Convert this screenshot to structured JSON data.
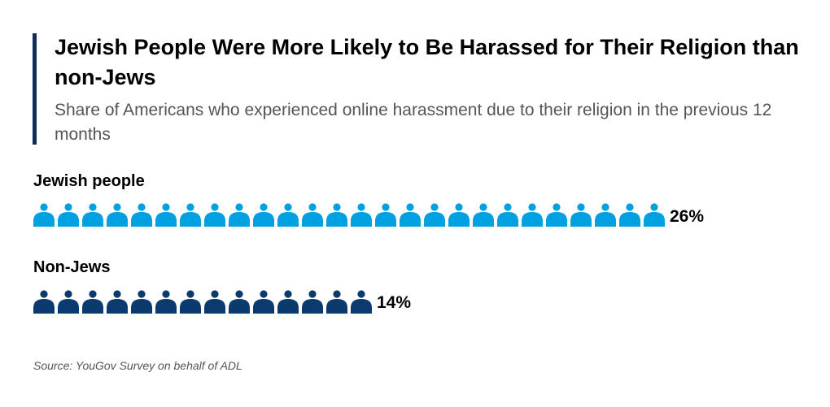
{
  "title": "Jewish People Were More Likely to Be Harassed for Their Religion than non-Jews",
  "subtitle": "Share of Americans who experienced online harassment due to their religion in the previous 12 months",
  "source": "Source: YouGov Survey on behalf of ADL",
  "chart_data": {
    "type": "pictogram",
    "unit": "one person icon per percentage point",
    "categories": [
      "Jewish people",
      "Non-Jews"
    ],
    "values": [
      26,
      14
    ],
    "labels": [
      "26%",
      "14%"
    ],
    "colors": [
      "#00a0e1",
      "#0b3a6e"
    ]
  }
}
